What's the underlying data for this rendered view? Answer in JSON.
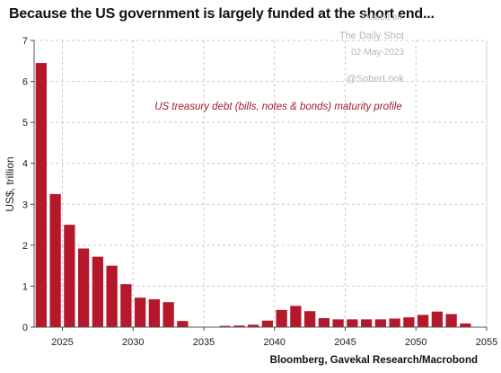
{
  "title": "Because the US government is largely funded at the short end...",
  "watermark": {
    "posted": "Posted on",
    "source": "The Daily Shot",
    "date": "02-May-2023",
    "handle": "@SoberLook"
  },
  "source_note": "Bloomberg, Gavekal Research/Macrobond",
  "colors": {
    "bar": "#b5182b",
    "annotation": "#a01c2c",
    "grid": "#c9c9c9"
  },
  "chart_data": {
    "type": "bar",
    "title": "Because the US government is largely funded at the short end...",
    "xlabel": "",
    "ylabel": "US$, trillion",
    "annotation": "US treasury debt (bills, notes & bonds) maturity profile",
    "xlim": [
      2023,
      2055
    ],
    "ylim": [
      0,
      7
    ],
    "xticks": [
      2025,
      2030,
      2035,
      2040,
      2045,
      2050,
      2055
    ],
    "yticks": [
      0,
      1,
      2,
      3,
      4,
      5,
      6,
      7
    ],
    "grid": true,
    "x": [
      2023,
      2024,
      2025,
      2026,
      2027,
      2028,
      2029,
      2030,
      2031,
      2032,
      2033,
      2034,
      2035,
      2036,
      2037,
      2038,
      2039,
      2040,
      2041,
      2042,
      2043,
      2044,
      2045,
      2046,
      2047,
      2048,
      2049,
      2050,
      2051,
      2052,
      2053
    ],
    "values": [
      6.45,
      3.25,
      2.5,
      1.92,
      1.72,
      1.5,
      1.05,
      0.72,
      0.68,
      0.61,
      0.15,
      0.01,
      0.01,
      0.03,
      0.04,
      0.06,
      0.16,
      0.42,
      0.52,
      0.39,
      0.22,
      0.19,
      0.19,
      0.19,
      0.19,
      0.21,
      0.24,
      0.3,
      0.38,
      0.32,
      0.09
    ]
  }
}
